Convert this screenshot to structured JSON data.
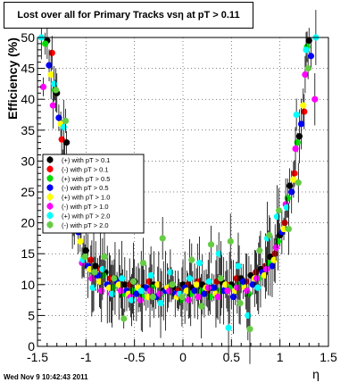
{
  "chart_data": {
    "type": "scatter",
    "title": "Lost over all for Primary Tracks vsη at pT > 0.11",
    "xlabel": "η",
    "ylabel": "Efficiency (%)",
    "xlim": [
      -1.5,
      1.5
    ],
    "ylim": [
      0,
      50
    ],
    "xticks": [
      "-1.5",
      "-1",
      "-0.5",
      "0",
      "0.5",
      "1",
      "1.5"
    ],
    "yticks": [
      "0",
      "5",
      "10",
      "15",
      "20",
      "25",
      "30",
      "35",
      "40",
      "45",
      "50"
    ],
    "grid": true,
    "legend_position": "left",
    "series": [
      {
        "name": "(+) with pT > 0.1",
        "color": "#000000",
        "x": [
          -1.4,
          -1.3,
          -1.2,
          -1.1,
          -1.0,
          -0.9,
          -0.8,
          -0.7,
          -0.6,
          -0.5,
          -0.4,
          -0.3,
          -0.2,
          -0.1,
          0.0,
          0.1,
          0.2,
          0.3,
          0.4,
          0.5,
          0.6,
          0.7,
          0.8,
          0.9,
          1.0,
          1.1,
          1.2,
          1.3
        ],
        "y": [
          49.5,
          41.0,
          33.0,
          21.0,
          15.5,
          13.0,
          12.0,
          11.0,
          10.0,
          10.5,
          9.5,
          10.0,
          9.0,
          9.5,
          10.0,
          9.5,
          10.0,
          9.5,
          10.5,
          10.0,
          11.0,
          11.5,
          12.5,
          14.5,
          18.0,
          26.0,
          34.0,
          49.5
        ]
      },
      {
        "name": "(-) with pT > 0.1",
        "color": "#ff0000",
        "x": [
          -1.35,
          -1.25,
          -1.15,
          -1.05,
          -0.95,
          -0.85,
          -0.75,
          -0.65,
          -0.55,
          -0.45,
          -0.35,
          -0.25,
          -0.15,
          -0.05,
          0.05,
          0.15,
          0.25,
          0.35,
          0.45,
          0.55,
          0.65,
          0.75,
          0.85,
          0.95,
          1.05,
          1.15,
          1.25
        ],
        "y": [
          47.5,
          33.5,
          26.0,
          19.0,
          14.0,
          12.5,
          11.0,
          10.5,
          10.0,
          9.5,
          10.5,
          10.0,
          9.5,
          9.0,
          10.0,
          10.5,
          9.0,
          10.5,
          10.0,
          11.0,
          10.5,
          12.0,
          13.0,
          15.0,
          20.0,
          28.0,
          38.0
        ]
      },
      {
        "name": "(+) with pT > 0.5",
        "color": "#00dd00",
        "x": [
          -1.42,
          -1.32,
          -1.22,
          -1.12,
          -1.02,
          -0.92,
          -0.82,
          -0.72,
          -0.62,
          -0.52,
          -0.42,
          -0.32,
          -0.22,
          -0.12,
          -0.02,
          0.08,
          0.18,
          0.28,
          0.38,
          0.48,
          0.58,
          0.68,
          0.78,
          0.88,
          0.98,
          1.08,
          1.18,
          1.28
        ],
        "y": [
          49.0,
          41.5,
          30.0,
          20.0,
          14.5,
          12.0,
          11.5,
          9.5,
          8.5,
          9.0,
          8.0,
          9.5,
          8.5,
          10.0,
          7.5,
          8.5,
          9.0,
          8.0,
          9.0,
          9.5,
          10.0,
          8.5,
          11.0,
          13.5,
          17.0,
          24.0,
          33.0,
          48.5
        ]
      },
      {
        "name": "(-) with pT > 0.5",
        "color": "#0000ff",
        "x": [
          -1.38,
          -1.28,
          -1.18,
          -1.08,
          -0.98,
          -0.88,
          -0.78,
          -0.68,
          -0.58,
          -0.48,
          -0.38,
          -0.28,
          -0.18,
          -0.08,
          0.02,
          0.12,
          0.22,
          0.32,
          0.42,
          0.52,
          0.62,
          0.72,
          0.82,
          0.92,
          1.02,
          1.12,
          1.22,
          1.32
        ],
        "y": [
          45.5,
          37.0,
          27.5,
          18.5,
          13.0,
          11.5,
          10.0,
          10.5,
          9.0,
          8.5,
          9.5,
          8.0,
          9.0,
          8.5,
          9.5,
          9.0,
          8.5,
          9.5,
          9.0,
          8.0,
          10.5,
          10.0,
          12.0,
          13.0,
          18.5,
          25.0,
          36.0,
          47.0
        ]
      },
      {
        "name": "(+) with pT > 1.0",
        "color": "#ffff00",
        "x": [
          -1.36,
          -1.26,
          -1.16,
          -1.06,
          -0.96,
          -0.86,
          -0.76,
          -0.66,
          -0.56,
          -0.46,
          -0.36,
          -0.26,
          -0.16,
          -0.06,
          0.04,
          0.14,
          0.24,
          0.34,
          0.44,
          0.54,
          0.64,
          0.74,
          0.84,
          0.94,
          1.04,
          1.14,
          1.24
        ],
        "y": [
          44.0,
          36.0,
          25.0,
          17.0,
          12.5,
          10.5,
          9.5,
          10.0,
          8.5,
          9.5,
          8.0,
          10.0,
          9.5,
          8.0,
          9.0,
          10.0,
          9.5,
          8.5,
          10.0,
          9.0,
          9.5,
          11.0,
          11.5,
          14.0,
          19.0,
          27.0,
          39.0
        ]
      },
      {
        "name": "(-) with pT > 1.0",
        "color": "#ff00ff",
        "x": [
          -1.44,
          -1.34,
          -1.24,
          -1.14,
          -1.04,
          -0.94,
          -0.84,
          -0.74,
          -0.64,
          -0.54,
          -0.44,
          -0.34,
          -0.24,
          -0.14,
          -0.04,
          0.06,
          0.16,
          0.26,
          0.36,
          0.46,
          0.56,
          0.66,
          0.76,
          0.86,
          0.96,
          1.06,
          1.16,
          1.26,
          1.36
        ],
        "y": [
          42.0,
          39.0,
          29.0,
          19.5,
          13.5,
          11.0,
          9.0,
          8.5,
          9.0,
          8.0,
          7.5,
          9.0,
          8.5,
          9.0,
          8.5,
          7.5,
          8.0,
          9.5,
          8.0,
          9.0,
          9.5,
          9.0,
          11.0,
          12.5,
          16.0,
          23.0,
          32.0,
          44.0,
          40.0
        ]
      },
      {
        "name": "(+) with pT > 2.0",
        "color": "#00ffff",
        "x": [
          -1.46,
          -1.33,
          -1.23,
          -1.13,
          -1.03,
          -0.93,
          -0.83,
          -0.73,
          -0.63,
          -0.53,
          -0.43,
          -0.33,
          -0.23,
          -0.13,
          -0.03,
          0.07,
          0.17,
          0.27,
          0.37,
          0.47,
          0.57,
          0.67,
          0.77,
          0.87,
          0.97,
          1.07,
          1.17,
          1.27,
          1.37
        ],
        "y": [
          50.0,
          42.5,
          35.5,
          22.0,
          14.0,
          9.5,
          12.5,
          8.5,
          11.0,
          7.5,
          9.0,
          11.5,
          7.0,
          12.0,
          8.5,
          11.0,
          13.5,
          10.5,
          15.0,
          3.0,
          13.0,
          5.0,
          9.5,
          17.5,
          21.0,
          22.5,
          37.5,
          48.0,
          50.0
        ]
      },
      {
        "name": "(-) with pT > 2.0",
        "color": "#66cc44",
        "x": [
          -1.31,
          -1.21,
          -1.11,
          -1.01,
          -0.91,
          -0.81,
          -0.71,
          -0.61,
          -0.51,
          -0.41,
          -0.31,
          -0.21,
          -0.11,
          -0.01,
          0.09,
          0.19,
          0.29,
          0.39,
          0.49,
          0.59,
          0.69,
          0.79,
          0.89,
          0.99,
          1.09,
          1.19,
          1.29
        ],
        "y": [
          41.5,
          36.5,
          23.5,
          14.5,
          12.0,
          14.5,
          11.0,
          4.5,
          10.5,
          13.5,
          8.0,
          17.5,
          10.0,
          8.0,
          14.0,
          6.5,
          16.5,
          11.0,
          17.0,
          7.0,
          2.8,
          15.5,
          18.0,
          22.0,
          19.0,
          26.5,
          45.0
        ]
      }
    ]
  },
  "legend_labels": [
    "(+) with pT > 0.1",
    "(-) with pT > 0.1",
    "(+) with pT > 0.5",
    "(-) with pT > 0.5",
    "(+) with pT > 1.0",
    "(-) with pT > 1.0",
    "(+) with pT > 2.0",
    "(-) with pT > 2.0"
  ],
  "footer_timestamp": "Wed Nov  9 10:42:43 2011"
}
